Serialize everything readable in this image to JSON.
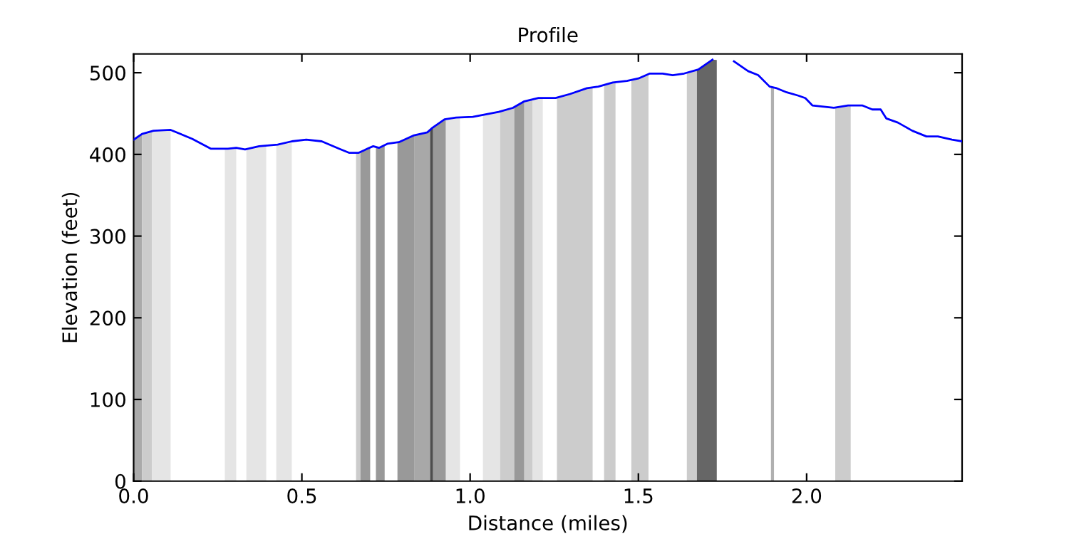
{
  "chart_data": {
    "type": "line",
    "title": "Profile",
    "xlabel": "Distance (miles)",
    "ylabel": "Elevation (feet)",
    "x": [
      0,
      0.025,
      0.059,
      0.11,
      0.174,
      0.229,
      0.28,
      0.305,
      0.331,
      0.373,
      0.428,
      0.47,
      0.513,
      0.559,
      0.61,
      0.64,
      0.669,
      0.695,
      0.712,
      0.729,
      0.754,
      0.788,
      0.831,
      0.873,
      0.886,
      0.924,
      0.958,
      1.008,
      1.085,
      1.127,
      1.161,
      1.203,
      1.254,
      1.297,
      1.347,
      1.381,
      1.424,
      1.466,
      1.5,
      1.534,
      1.572,
      1.602,
      1.636,
      1.678,
      1.72,
      1.733,
      1.754,
      1.784,
      1.826,
      1.856,
      1.89,
      1.911,
      1.941,
      1.975,
      1.996,
      2.017,
      2.081,
      2.123,
      2.165,
      2.195,
      2.22,
      2.237,
      2.271,
      2.314,
      2.356,
      2.39,
      2.432,
      2.462
    ],
    "series": [
      {
        "color": "#0000ff",
        "values": [
          418,
          425,
          429,
          430,
          419,
          407,
          407,
          408,
          406,
          410,
          412,
          416,
          418,
          416,
          407,
          402,
          402,
          407,
          410,
          408,
          413,
          415,
          423,
          427,
          432,
          443,
          445,
          446,
          452,
          457,
          465,
          469,
          469,
          474,
          481,
          483,
          488,
          490,
          493,
          499,
          499,
          497,
          499,
          504,
          516,
          null,
          null,
          514,
          502,
          497,
          483,
          481,
          476,
          472,
          469,
          460,
          457,
          460,
          460,
          455,
          455,
          444,
          439,
          429,
          422,
          422,
          418,
          416
        ]
      }
    ],
    "bands": [
      {
        "axis": "x",
        "from": 0,
        "to": 0.025,
        "color": "#aaaaaa"
      },
      {
        "axis": "x",
        "from": 0.025,
        "to": 0.055,
        "color": "#cccccc"
      },
      {
        "axis": "x",
        "from": 0.055,
        "to": 0.11,
        "color": "#e5e5e5"
      },
      {
        "axis": "x",
        "from": 0.271,
        "to": 0.305,
        "color": "#e5e5e5"
      },
      {
        "axis": "x",
        "from": 0.335,
        "to": 0.394,
        "color": "#e5e5e5"
      },
      {
        "axis": "x",
        "from": 0.424,
        "to": 0.47,
        "color": "#e5e5e5"
      },
      {
        "axis": "x",
        "from": 0.661,
        "to": 0.674,
        "color": "#cccccc"
      },
      {
        "axis": "x",
        "from": 0.674,
        "to": 0.703,
        "color": "#999999"
      },
      {
        "axis": "x",
        "from": 0.72,
        "to": 0.746,
        "color": "#999999"
      },
      {
        "axis": "x",
        "from": 0.784,
        "to": 0.835,
        "color": "#999999"
      },
      {
        "axis": "x",
        "from": 0.835,
        "to": 0.881,
        "color": "#a8a8a8"
      },
      {
        "axis": "x",
        "from": 0.881,
        "to": 0.89,
        "color": "#4d4d4d"
      },
      {
        "axis": "x",
        "from": 0.89,
        "to": 0.928,
        "color": "#999999"
      },
      {
        "axis": "x",
        "from": 0.928,
        "to": 0.97,
        "color": "#e5e5e5"
      },
      {
        "axis": "x",
        "from": 1.038,
        "to": 1.089,
        "color": "#e5e5e5"
      },
      {
        "axis": "x",
        "from": 1.089,
        "to": 1.131,
        "color": "#cccccc"
      },
      {
        "axis": "x",
        "from": 1.131,
        "to": 1.161,
        "color": "#999999"
      },
      {
        "axis": "x",
        "from": 1.161,
        "to": 1.186,
        "color": "#cccccc"
      },
      {
        "axis": "x",
        "from": 1.186,
        "to": 1.216,
        "color": "#e5e5e5"
      },
      {
        "axis": "x",
        "from": 1.258,
        "to": 1.364,
        "color": "#cccccc"
      },
      {
        "axis": "x",
        "from": 1.398,
        "to": 1.432,
        "color": "#cccccc"
      },
      {
        "axis": "x",
        "from": 1.479,
        "to": 1.53,
        "color": "#cccccc"
      },
      {
        "axis": "x",
        "from": 1.644,
        "to": 1.674,
        "color": "#cccccc"
      },
      {
        "axis": "x",
        "from": 1.674,
        "to": 1.733,
        "color": "#666666"
      },
      {
        "axis": "x",
        "from": 1.894,
        "to": 1.903,
        "color": "#b0b0b0"
      },
      {
        "axis": "x",
        "from": 2.085,
        "to": 2.131,
        "color": "#cccccc"
      }
    ],
    "xlim": [
      0,
      2.462
    ],
    "ylim": [
      0,
      523
    ],
    "xticks": [
      {
        "value": 0,
        "label": "0.0"
      },
      0.5,
      {
        "value": 1,
        "label": "1.0"
      },
      1.5,
      {
        "value": 2,
        "label": "2.0"
      }
    ],
    "yticks": [
      0,
      100,
      200,
      300,
      400,
      500
    ],
    "grid": false,
    "legend": false,
    "marker": "none",
    "line_style": "solid"
  }
}
